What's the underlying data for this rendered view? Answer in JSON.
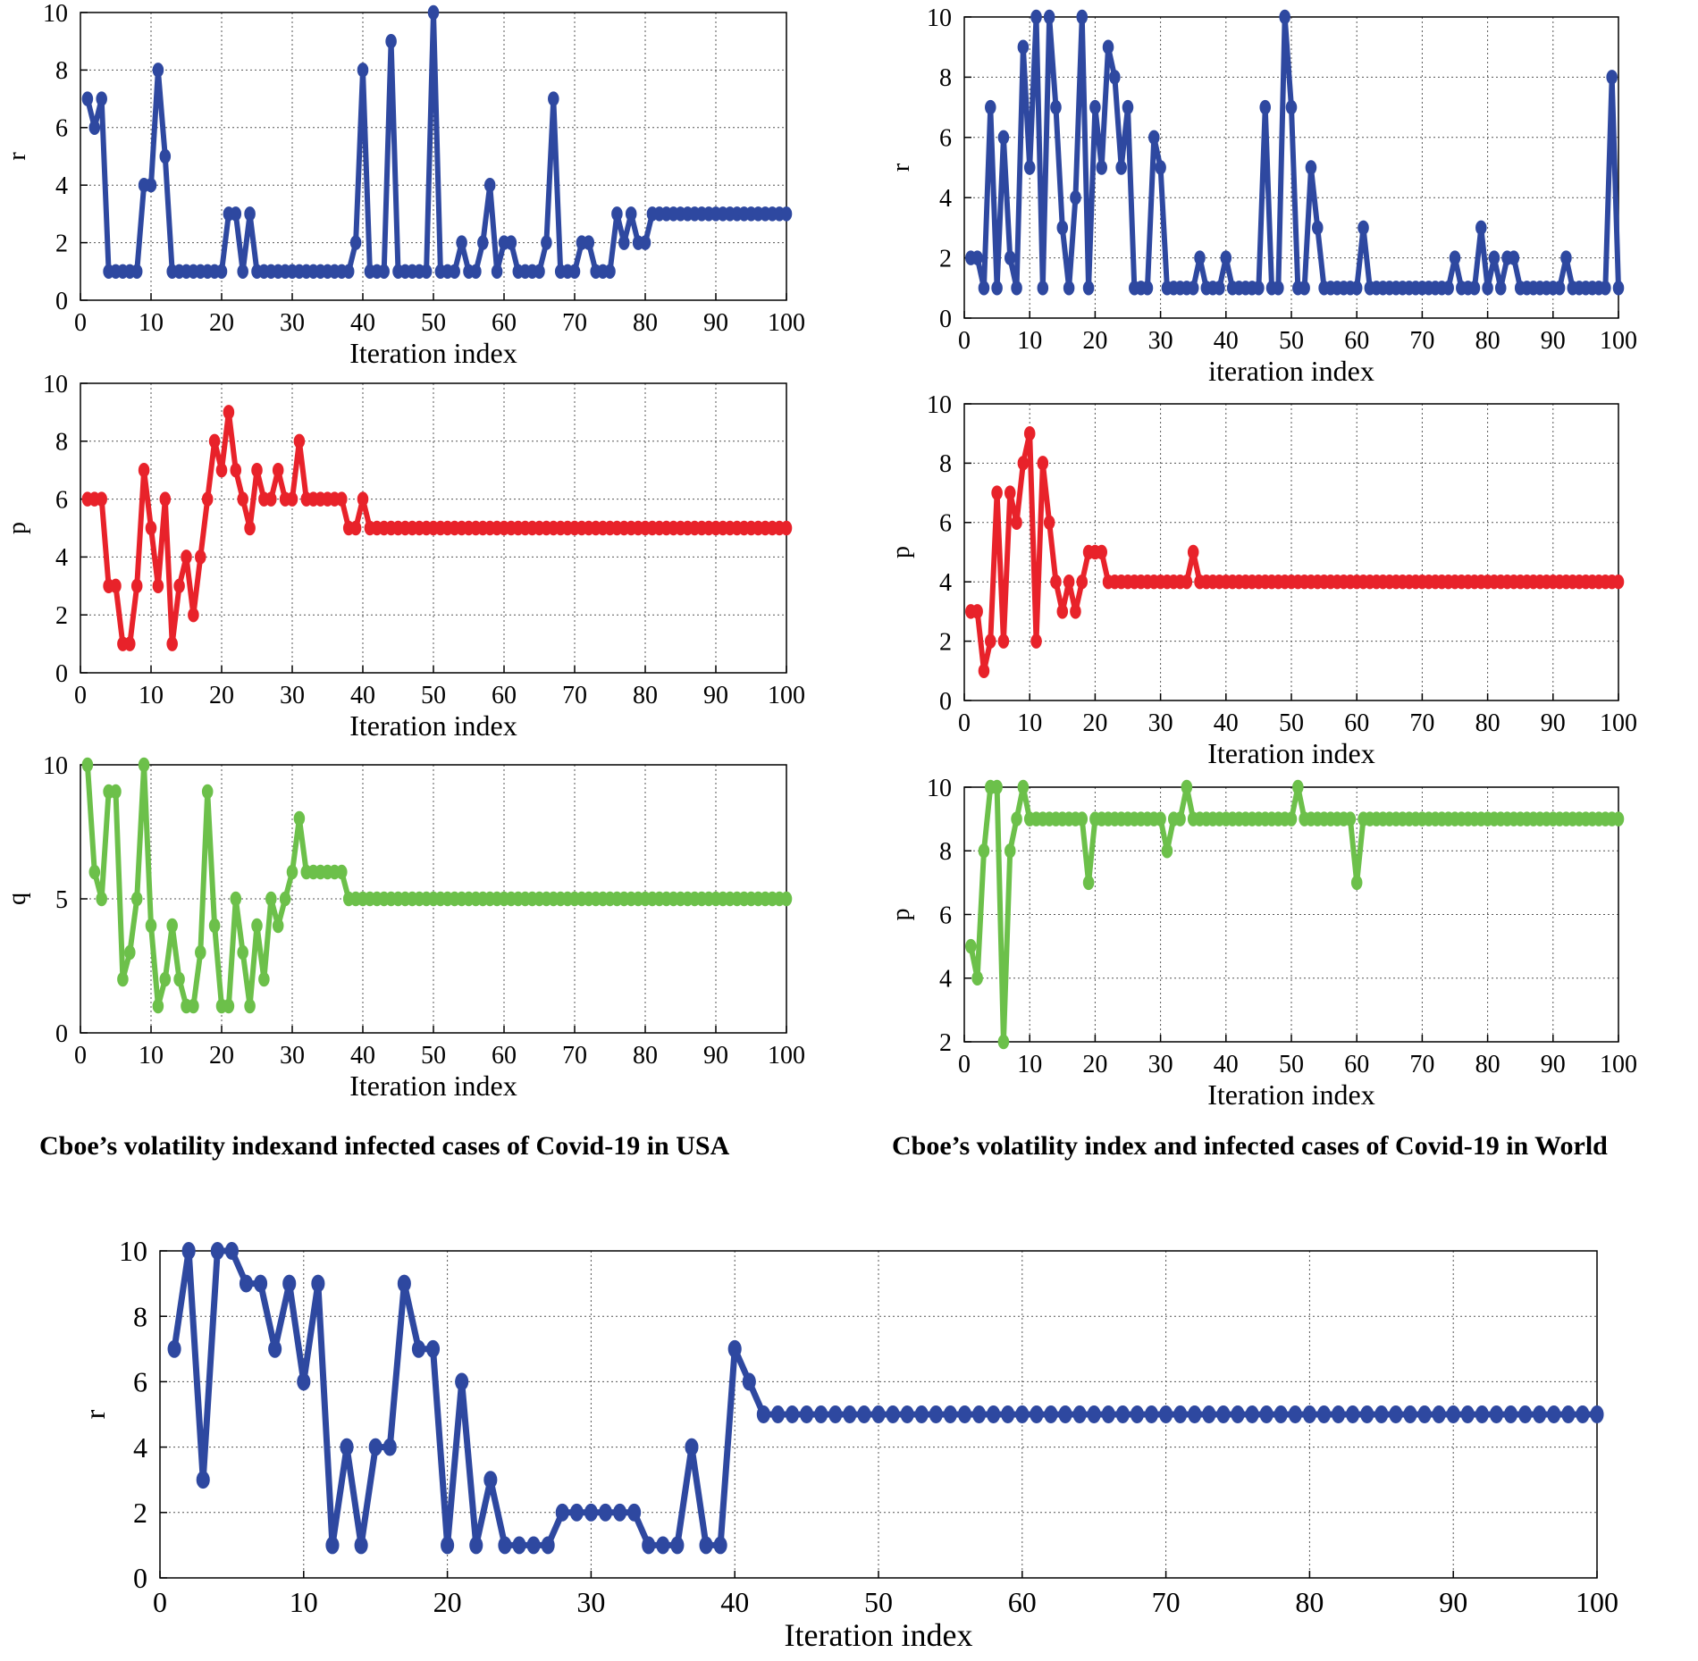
{
  "figure": {
    "captions": {
      "left": "Cboe’s volatility indexand  infected cases of Covid-19 in USA",
      "right": "Cboe’s volatility index and infected cases of Covid-19 in World"
    }
  },
  "colors": {
    "blue": "#2E48A0",
    "red": "#E8222A",
    "green": "#6CC04A",
    "grid": "#000000"
  },
  "chart_data": [
    {
      "id": "usa-r",
      "type": "line",
      "title": "",
      "xlabel": "Iteration index",
      "ylabel": "r",
      "xlim": [
        0,
        100
      ],
      "ylim": [
        0,
        10
      ],
      "xticks": [
        0,
        10,
        20,
        30,
        40,
        50,
        60,
        70,
        80,
        90,
        100
      ],
      "yticks": [
        0,
        2,
        4,
        6,
        8,
        10
      ],
      "grid": true,
      "color": "blue",
      "values": [
        7,
        6,
        7,
        1,
        1,
        1,
        1,
        1,
        4,
        4,
        8,
        5,
        1,
        1,
        1,
        1,
        1,
        1,
        1,
        1,
        3,
        3,
        1,
        3,
        1,
        1,
        1,
        1,
        1,
        1,
        1,
        1,
        1,
        1,
        1,
        1,
        1,
        1,
        2,
        8,
        1,
        1,
        1,
        9,
        1,
        1,
        1,
        1,
        1,
        10,
        1,
        1,
        1,
        2,
        1,
        1,
        2,
        4,
        1,
        2,
        2,
        1,
        1,
        1,
        1,
        2,
        7,
        1,
        1,
        1,
        2,
        2,
        1,
        1,
        1,
        3,
        2,
        3,
        2,
        2,
        3,
        3,
        3,
        3,
        3,
        3,
        3,
        3,
        3,
        3,
        3,
        3,
        3,
        3,
        3,
        3,
        3,
        3,
        3,
        3
      ]
    },
    {
      "id": "usa-p",
      "type": "line",
      "title": "",
      "xlabel": "Iteration index",
      "ylabel": "p",
      "xlim": [
        0,
        100
      ],
      "ylim": [
        0,
        10
      ],
      "xticks": [
        0,
        10,
        20,
        30,
        40,
        50,
        60,
        70,
        80,
        90,
        100
      ],
      "yticks": [
        0,
        2,
        4,
        6,
        8,
        10
      ],
      "grid": true,
      "color": "red",
      "values": [
        6,
        6,
        6,
        3,
        3,
        1,
        1,
        3,
        7,
        5,
        3,
        6,
        1,
        3,
        4,
        2,
        4,
        6,
        8,
        7,
        9,
        7,
        6,
        5,
        7,
        6,
        6,
        7,
        6,
        6,
        8,
        6,
        6,
        6,
        6,
        6,
        6,
        5,
        5,
        6,
        5,
        5,
        5,
        5,
        5,
        5,
        5,
        5,
        5,
        5,
        5,
        5,
        5,
        5,
        5,
        5,
        5,
        5,
        5,
        5,
        5,
        5,
        5,
        5,
        5,
        5,
        5,
        5,
        5,
        5,
        5,
        5,
        5,
        5,
        5,
        5,
        5,
        5,
        5,
        5,
        5,
        5,
        5,
        5,
        5,
        5,
        5,
        5,
        5,
        5,
        5,
        5,
        5,
        5,
        5,
        5,
        5,
        5,
        5,
        5
      ]
    },
    {
      "id": "usa-q",
      "type": "line",
      "title": "",
      "xlabel": "Iteration index",
      "ylabel": "q",
      "xlim": [
        0,
        100
      ],
      "ylim": [
        0,
        10
      ],
      "xticks": [
        0,
        10,
        20,
        30,
        40,
        50,
        60,
        70,
        80,
        90,
        100
      ],
      "yticks": [
        0,
        5,
        10
      ],
      "grid": true,
      "color": "green",
      "values": [
        10,
        6,
        5,
        9,
        9,
        2,
        3,
        5,
        10,
        4,
        1,
        2,
        4,
        2,
        1,
        1,
        3,
        9,
        4,
        1,
        1,
        5,
        3,
        1,
        4,
        2,
        5,
        4,
        5,
        6,
        8,
        6,
        6,
        6,
        6,
        6,
        6,
        5,
        5,
        5,
        5,
        5,
        5,
        5,
        5,
        5,
        5,
        5,
        5,
        5,
        5,
        5,
        5,
        5,
        5,
        5,
        5,
        5,
        5,
        5,
        5,
        5,
        5,
        5,
        5,
        5,
        5,
        5,
        5,
        5,
        5,
        5,
        5,
        5,
        5,
        5,
        5,
        5,
        5,
        5,
        5,
        5,
        5,
        5,
        5,
        5,
        5,
        5,
        5,
        5,
        5,
        5,
        5,
        5,
        5,
        5,
        5,
        5,
        5,
        5
      ]
    },
    {
      "id": "world-r",
      "type": "line",
      "title": "",
      "xlabel": "iteration index",
      "ylabel": "r",
      "xlim": [
        0,
        100
      ],
      "ylim": [
        0,
        10
      ],
      "xticks": [
        0,
        10,
        20,
        30,
        40,
        50,
        60,
        70,
        80,
        90,
        100
      ],
      "yticks": [
        0,
        2,
        4,
        6,
        8,
        10
      ],
      "grid": true,
      "color": "blue",
      "values": [
        2,
        2,
        1,
        7,
        1,
        6,
        2,
        1,
        9,
        5,
        10,
        1,
        10,
        7,
        3,
        1,
        4,
        10,
        1,
        7,
        5,
        9,
        8,
        5,
        7,
        1,
        1,
        1,
        6,
        5,
        1,
        1,
        1,
        1,
        1,
        2,
        1,
        1,
        1,
        2,
        1,
        1,
        1,
        1,
        1,
        7,
        1,
        1,
        10,
        7,
        1,
        1,
        5,
        3,
        1,
        1,
        1,
        1,
        1,
        1,
        3,
        1,
        1,
        1,
        1,
        1,
        1,
        1,
        1,
        1,
        1,
        1,
        1,
        1,
        2,
        1,
        1,
        1,
        3,
        1,
        2,
        1,
        2,
        2,
        1,
        1,
        1,
        1,
        1,
        1,
        1,
        2,
        1,
        1,
        1,
        1,
        1,
        1,
        8,
        1
      ]
    },
    {
      "id": "world-p",
      "type": "line",
      "title": "",
      "xlabel": "Iteration index",
      "ylabel": "p",
      "xlim": [
        0,
        100
      ],
      "ylim": [
        0,
        10
      ],
      "xticks": [
        0,
        10,
        20,
        30,
        40,
        50,
        60,
        70,
        80,
        90,
        100
      ],
      "yticks": [
        0,
        2,
        4,
        6,
        8,
        10
      ],
      "grid": true,
      "color": "red",
      "values": [
        3,
        3,
        1,
        2,
        7,
        2,
        7,
        6,
        8,
        9,
        2,
        8,
        6,
        4,
        3,
        4,
        3,
        4,
        5,
        5,
        5,
        4,
        4,
        4,
        4,
        4,
        4,
        4,
        4,
        4,
        4,
        4,
        4,
        4,
        5,
        4,
        4,
        4,
        4,
        4,
        4,
        4,
        4,
        4,
        4,
        4,
        4,
        4,
        4,
        4,
        4,
        4,
        4,
        4,
        4,
        4,
        4,
        4,
        4,
        4,
        4,
        4,
        4,
        4,
        4,
        4,
        4,
        4,
        4,
        4,
        4,
        4,
        4,
        4,
        4,
        4,
        4,
        4,
        4,
        4,
        4,
        4,
        4,
        4,
        4,
        4,
        4,
        4,
        4,
        4,
        4,
        4,
        4,
        4,
        4,
        4,
        4,
        4,
        4,
        4
      ]
    },
    {
      "id": "world-q",
      "type": "line",
      "title": "",
      "xlabel": "Iteration index",
      "ylabel": "p",
      "xlim": [
        0,
        100
      ],
      "ylim": [
        2,
        10
      ],
      "xticks": [
        0,
        10,
        20,
        30,
        40,
        50,
        60,
        70,
        80,
        90,
        100
      ],
      "yticks": [
        2,
        4,
        6,
        8,
        10
      ],
      "grid": true,
      "color": "green",
      "values": [
        5,
        4,
        8,
        10,
        10,
        2,
        8,
        9,
        10,
        9,
        9,
        9,
        9,
        9,
        9,
        9,
        9,
        9,
        7,
        9,
        9,
        9,
        9,
        9,
        9,
        9,
        9,
        9,
        9,
        9,
        8,
        9,
        9,
        10,
        9,
        9,
        9,
        9,
        9,
        9,
        9,
        9,
        9,
        9,
        9,
        9,
        9,
        9,
        9,
        9,
        10,
        9,
        9,
        9,
        9,
        9,
        9,
        9,
        9,
        7,
        9,
        9,
        9,
        9,
        9,
        9,
        9,
        9,
        9,
        9,
        9,
        9,
        9,
        9,
        9,
        9,
        9,
        9,
        9,
        9,
        9,
        9,
        9,
        9,
        9,
        9,
        9,
        9,
        9,
        9,
        9,
        9,
        9,
        9,
        9,
        9,
        9,
        9,
        9,
        9
      ]
    },
    {
      "id": "bottom-r",
      "type": "line",
      "title": "",
      "xlabel": "Iteration index",
      "ylabel": "r",
      "xlim": [
        0,
        100
      ],
      "ylim": [
        0,
        10
      ],
      "xticks": [
        0,
        10,
        20,
        30,
        40,
        50,
        60,
        70,
        80,
        90,
        100
      ],
      "yticks": [
        0,
        2,
        4,
        6,
        8,
        10
      ],
      "grid": true,
      "color": "blue",
      "values": [
        7,
        10,
        3,
        10,
        10,
        9,
        9,
        7,
        9,
        6,
        9,
        1,
        4,
        1,
        4,
        4,
        9,
        7,
        7,
        1,
        6,
        1,
        3,
        1,
        1,
        1,
        1,
        2,
        2,
        2,
        2,
        2,
        2,
        1,
        1,
        1,
        4,
        1,
        1,
        7,
        6,
        5,
        5,
        5,
        5,
        5,
        5,
        5,
        5,
        5,
        5,
        5,
        5,
        5,
        5,
        5,
        5,
        5,
        5,
        5,
        5,
        5,
        5,
        5,
        5,
        5,
        5,
        5,
        5,
        5,
        5,
        5,
        5,
        5,
        5,
        5,
        5,
        5,
        5,
        5,
        5,
        5,
        5,
        5,
        5,
        5,
        5,
        5,
        5,
        5,
        5,
        5,
        5,
        5,
        5,
        5,
        5,
        5,
        5,
        5
      ]
    }
  ]
}
